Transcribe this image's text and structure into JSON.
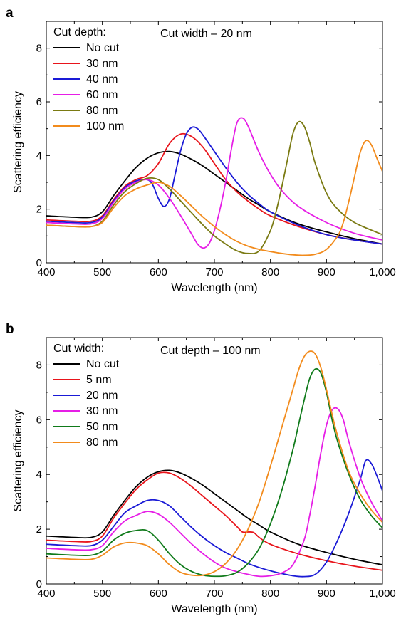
{
  "chart_data": [
    {
      "type": "line",
      "panel_label": "a",
      "xlabel": "Wavelength (nm)",
      "ylabel": "Scattering efficiency",
      "xlim": [
        400,
        1000
      ],
      "ylim": [
        0,
        9
      ],
      "xticks": [
        400,
        500,
        600,
        700,
        800,
        900,
        1000
      ],
      "xtick_labels": [
        "400",
        "500",
        "600",
        "700",
        "800",
        "900",
        "1,000"
      ],
      "yticks": [
        0,
        2,
        4,
        6,
        8
      ],
      "ytick_labels": [
        "0",
        "2",
        "4",
        "6",
        "8"
      ],
      "legend_title": "Cut depth:",
      "legend_position": "top-left",
      "annotation": "Cut width – 20 nm",
      "series": [
        {
          "name": "No cut",
          "color": "#000000",
          "x": [
            400,
            450,
            480,
            500,
            520,
            540,
            560,
            580,
            600,
            620,
            640,
            660,
            680,
            700,
            720,
            740,
            760,
            780,
            800,
            850,
            900,
            950,
            1000
          ],
          "y": [
            1.75,
            1.7,
            1.7,
            1.9,
            2.5,
            3.05,
            3.55,
            3.9,
            4.1,
            4.15,
            4.05,
            3.85,
            3.6,
            3.3,
            3.0,
            2.7,
            2.4,
            2.15,
            1.9,
            1.45,
            1.15,
            0.9,
            0.7
          ]
        },
        {
          "name": "30 nm",
          "color": "#e8141b",
          "x": [
            400,
            450,
            480,
            500,
            520,
            540,
            560,
            580,
            600,
            620,
            640,
            660,
            680,
            700,
            720,
            740,
            760,
            780,
            800,
            850,
            900,
            950,
            1000
          ],
          "y": [
            1.6,
            1.55,
            1.55,
            1.75,
            2.35,
            2.85,
            3.1,
            3.25,
            3.7,
            4.45,
            4.8,
            4.7,
            4.3,
            3.7,
            3.1,
            2.65,
            2.3,
            2.0,
            1.75,
            1.35,
            1.05,
            0.85,
            0.7
          ]
        },
        {
          "name": "40 nm",
          "color": "#1a1ad6",
          "x": [
            400,
            450,
            480,
            500,
            520,
            540,
            560,
            580,
            590,
            600,
            610,
            620,
            630,
            640,
            650,
            660,
            670,
            680,
            700,
            720,
            740,
            760,
            780,
            800,
            850,
            900,
            950,
            1000
          ],
          "y": [
            1.55,
            1.5,
            1.5,
            1.7,
            2.3,
            2.8,
            3.05,
            3.1,
            2.9,
            2.4,
            2.1,
            2.4,
            3.3,
            4.2,
            4.8,
            5.05,
            5.0,
            4.75,
            4.15,
            3.55,
            3.0,
            2.55,
            2.2,
            1.9,
            1.4,
            1.05,
            0.85,
            0.7
          ]
        },
        {
          "name": "60 nm",
          "color": "#e61ee6",
          "x": [
            400,
            450,
            480,
            500,
            520,
            540,
            560,
            580,
            600,
            620,
            640,
            660,
            670,
            680,
            690,
            700,
            710,
            720,
            730,
            740,
            750,
            760,
            780,
            800,
            820,
            850,
            900,
            950,
            1000
          ],
          "y": [
            1.5,
            1.45,
            1.45,
            1.65,
            2.25,
            2.75,
            3.0,
            3.1,
            2.9,
            2.4,
            1.75,
            1.05,
            0.7,
            0.55,
            0.7,
            1.2,
            2.0,
            3.0,
            4.2,
            5.2,
            5.4,
            5.1,
            4.1,
            3.3,
            2.7,
            2.1,
            1.5,
            1.1,
            0.85
          ]
        },
        {
          "name": "80 nm",
          "color": "#7a7a12",
          "x": [
            400,
            450,
            480,
            500,
            520,
            540,
            560,
            580,
            600,
            620,
            640,
            660,
            680,
            700,
            720,
            740,
            760,
            780,
            800,
            810,
            820,
            830,
            840,
            850,
            860,
            870,
            880,
            900,
            920,
            950,
            1000
          ],
          "y": [
            1.4,
            1.35,
            1.35,
            1.55,
            2.15,
            2.65,
            2.95,
            3.15,
            3.1,
            2.75,
            2.3,
            1.85,
            1.4,
            1.0,
            0.7,
            0.45,
            0.35,
            0.45,
            1.2,
            1.9,
            2.8,
            3.8,
            4.8,
            5.25,
            5.1,
            4.5,
            3.7,
            2.6,
            2.0,
            1.5,
            1.05
          ]
        },
        {
          "name": "100 nm",
          "color": "#f28b1c",
          "x": [
            400,
            450,
            480,
            500,
            520,
            540,
            560,
            580,
            600,
            620,
            640,
            660,
            680,
            700,
            720,
            740,
            760,
            780,
            800,
            820,
            840,
            860,
            880,
            900,
            920,
            930,
            940,
            950,
            960,
            970,
            980,
            990,
            1000
          ],
          "y": [
            1.4,
            1.35,
            1.35,
            1.5,
            2.05,
            2.5,
            2.75,
            2.9,
            3.0,
            2.85,
            2.5,
            2.1,
            1.7,
            1.35,
            1.05,
            0.8,
            0.62,
            0.5,
            0.42,
            0.35,
            0.3,
            0.28,
            0.32,
            0.5,
            1.0,
            1.5,
            2.3,
            3.2,
            4.1,
            4.55,
            4.4,
            3.9,
            3.4
          ]
        }
      ]
    },
    {
      "type": "line",
      "panel_label": "b",
      "xlabel": "Wavelength (nm)",
      "ylabel": "Scattering efficiency",
      "xlim": [
        400,
        1000
      ],
      "ylim": [
        0,
        9
      ],
      "xticks": [
        400,
        500,
        600,
        700,
        800,
        900,
        1000
      ],
      "xtick_labels": [
        "400",
        "500",
        "600",
        "700",
        "800",
        "900",
        "1,000"
      ],
      "yticks": [
        0,
        2,
        4,
        6,
        8
      ],
      "ytick_labels": [
        "0",
        "2",
        "4",
        "6",
        "8"
      ],
      "legend_title": "Cut width:",
      "legend_position": "top-left",
      "annotation": "Cut depth – 100 nm",
      "series": [
        {
          "name": "No cut",
          "color": "#000000",
          "x": [
            400,
            450,
            480,
            500,
            520,
            540,
            560,
            580,
            600,
            620,
            640,
            660,
            680,
            700,
            720,
            740,
            760,
            780,
            800,
            850,
            900,
            950,
            1000
          ],
          "y": [
            1.75,
            1.7,
            1.7,
            1.9,
            2.5,
            3.05,
            3.55,
            3.9,
            4.1,
            4.15,
            4.05,
            3.85,
            3.6,
            3.3,
            3.0,
            2.7,
            2.4,
            2.15,
            1.9,
            1.45,
            1.15,
            0.9,
            0.7
          ]
        },
        {
          "name": "5 nm",
          "color": "#e8141b",
          "x": [
            400,
            450,
            480,
            500,
            520,
            540,
            560,
            580,
            600,
            620,
            640,
            660,
            680,
            700,
            720,
            740,
            750,
            760,
            770,
            780,
            800,
            850,
            900,
            950,
            1000
          ],
          "y": [
            1.6,
            1.55,
            1.55,
            1.75,
            2.4,
            2.95,
            3.45,
            3.8,
            4.05,
            4.05,
            3.85,
            3.55,
            3.2,
            2.85,
            2.5,
            2.1,
            1.9,
            1.9,
            1.88,
            1.7,
            1.45,
            1.1,
            0.85,
            0.65,
            0.5
          ]
        },
        {
          "name": "20 nm",
          "color": "#1a1ad6",
          "x": [
            400,
            450,
            480,
            500,
            520,
            540,
            560,
            580,
            600,
            620,
            640,
            660,
            680,
            700,
            720,
            740,
            760,
            780,
            800,
            820,
            840,
            860,
            880,
            900,
            920,
            940,
            960,
            970,
            980,
            990,
            1000
          ],
          "y": [
            1.45,
            1.4,
            1.4,
            1.6,
            2.1,
            2.6,
            2.85,
            3.05,
            3.05,
            2.85,
            2.45,
            2.05,
            1.7,
            1.4,
            1.15,
            0.95,
            0.75,
            0.6,
            0.48,
            0.38,
            0.3,
            0.27,
            0.35,
            0.8,
            1.6,
            2.6,
            3.8,
            4.5,
            4.4,
            3.95,
            3.4
          ]
        },
        {
          "name": "30 nm",
          "color": "#e61ee6",
          "x": [
            400,
            450,
            480,
            500,
            520,
            540,
            560,
            580,
            600,
            620,
            640,
            660,
            680,
            700,
            720,
            740,
            760,
            780,
            800,
            820,
            840,
            860,
            870,
            880,
            890,
            900,
            910,
            920,
            930,
            940,
            960,
            980,
            1000
          ],
          "y": [
            1.3,
            1.25,
            1.25,
            1.4,
            1.9,
            2.3,
            2.5,
            2.65,
            2.55,
            2.25,
            1.85,
            1.45,
            1.1,
            0.8,
            0.58,
            0.45,
            0.35,
            0.28,
            0.3,
            0.4,
            0.7,
            1.6,
            2.5,
            3.6,
            4.8,
            5.8,
            6.35,
            6.4,
            6.0,
            5.2,
            3.9,
            3.0,
            2.3
          ]
        },
        {
          "name": "50 nm",
          "color": "#0f7a1a",
          "x": [
            400,
            450,
            480,
            500,
            520,
            540,
            560,
            580,
            600,
            620,
            640,
            660,
            680,
            700,
            720,
            740,
            760,
            780,
            800,
            820,
            840,
            850,
            860,
            870,
            880,
            890,
            900,
            910,
            920,
            940,
            960,
            980,
            1000
          ],
          "y": [
            1.1,
            1.05,
            1.05,
            1.2,
            1.6,
            1.85,
            1.95,
            1.95,
            1.6,
            1.1,
            0.7,
            0.45,
            0.32,
            0.28,
            0.3,
            0.42,
            0.75,
            1.3,
            2.2,
            3.4,
            4.9,
            5.8,
            6.7,
            7.5,
            7.85,
            7.7,
            7.0,
            6.0,
            5.2,
            4.0,
            3.1,
            2.5,
            2.05
          ]
        },
        {
          "name": "80 nm",
          "color": "#f28b1c",
          "x": [
            400,
            450,
            480,
            500,
            520,
            540,
            560,
            580,
            600,
            620,
            640,
            660,
            680,
            700,
            720,
            740,
            760,
            780,
            800,
            820,
            840,
            850,
            860,
            870,
            880,
            890,
            900,
            910,
            920,
            940,
            960,
            980,
            1000
          ],
          "y": [
            0.95,
            0.9,
            0.9,
            1.05,
            1.35,
            1.5,
            1.5,
            1.4,
            1.1,
            0.7,
            0.42,
            0.32,
            0.32,
            0.45,
            0.75,
            1.25,
            2.0,
            3.0,
            4.3,
            5.7,
            7.1,
            7.8,
            8.3,
            8.5,
            8.4,
            7.9,
            7.1,
            6.2,
            5.4,
            4.1,
            3.3,
            2.7,
            2.25
          ]
        }
      ]
    }
  ]
}
